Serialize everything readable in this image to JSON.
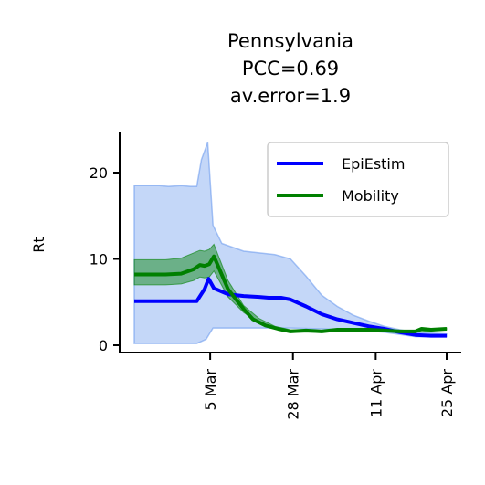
{
  "chart_data": {
    "type": "line",
    "title": [
      "Pennsylvania",
      "PCC=0.69",
      "av.error=1.9"
    ],
    "ylabel": "Rt",
    "xlabel": "",
    "x_ticks": [
      {
        "label": "5 Mar",
        "t": 0.243
      },
      {
        "label": "28 Mar",
        "t": 0.508
      },
      {
        "label": "11 Apr",
        "t": 0.773
      },
      {
        "label": "25 Apr",
        "t": 1.0
      }
    ],
    "y_ticks": [
      0,
      10,
      20
    ],
    "ylim": [
      -0.8,
      24.5
    ],
    "grid": false,
    "legend": {
      "placement": "top-right",
      "entries": [
        {
          "name": "EpiEstim",
          "color": "#0000ff"
        },
        {
          "name": "Mobility",
          "color": "#008000"
        }
      ]
    },
    "colors": {
      "epiestim": "#0000ff",
      "epiestim_band": "#6495ed",
      "mobility": "#008000"
    },
    "series": [
      {
        "name": "EpiEstim",
        "color": "#0000ff",
        "points": [
          [
            0.0,
            5.1
          ],
          [
            0.2,
            5.1
          ],
          [
            0.225,
            6.5
          ],
          [
            0.238,
            7.7
          ],
          [
            0.255,
            6.6
          ],
          [
            0.3,
            5.9
          ],
          [
            0.35,
            5.7
          ],
          [
            0.4,
            5.6
          ],
          [
            0.43,
            5.5
          ],
          [
            0.47,
            5.5
          ],
          [
            0.5,
            5.3
          ],
          [
            0.55,
            4.5
          ],
          [
            0.6,
            3.6
          ],
          [
            0.65,
            3.0
          ],
          [
            0.7,
            2.6
          ],
          [
            0.75,
            2.2
          ],
          [
            0.8,
            1.9
          ],
          [
            0.85,
            1.5
          ],
          [
            0.9,
            1.2
          ],
          [
            0.95,
            1.1
          ],
          [
            1.0,
            1.1
          ]
        ],
        "band_upper": [
          [
            0.0,
            18.5
          ],
          [
            0.08,
            18.5
          ],
          [
            0.11,
            18.4
          ],
          [
            0.15,
            18.5
          ],
          [
            0.18,
            18.4
          ],
          [
            0.2,
            18.4
          ],
          [
            0.215,
            21.5
          ],
          [
            0.235,
            23.5
          ],
          [
            0.252,
            13.9
          ],
          [
            0.28,
            11.8
          ],
          [
            0.35,
            10.9
          ],
          [
            0.45,
            10.5
          ],
          [
            0.5,
            10.0
          ],
          [
            0.55,
            8.0
          ],
          [
            0.6,
            5.8
          ],
          [
            0.65,
            4.5
          ],
          [
            0.7,
            3.5
          ],
          [
            0.75,
            2.8
          ],
          [
            0.8,
            2.2
          ],
          [
            0.85,
            1.8
          ],
          [
            0.9,
            1.5
          ],
          [
            0.95,
            1.4
          ],
          [
            1.0,
            1.3
          ]
        ],
        "band_lower": [
          [
            0.0,
            0.2
          ],
          [
            0.2,
            0.2
          ],
          [
            0.23,
            0.7
          ],
          [
            0.252,
            2.0
          ],
          [
            0.3,
            2.0
          ],
          [
            0.5,
            2.0
          ],
          [
            0.6,
            1.9
          ],
          [
            0.7,
            1.8
          ],
          [
            0.8,
            1.5
          ],
          [
            0.9,
            1.0
          ],
          [
            1.0,
            1.0
          ]
        ]
      },
      {
        "name": "Mobility",
        "color": "#008000",
        "points": [
          [
            0.0,
            8.2
          ],
          [
            0.1,
            8.2
          ],
          [
            0.15,
            8.3
          ],
          [
            0.19,
            8.8
          ],
          [
            0.21,
            9.3
          ],
          [
            0.225,
            9.2
          ],
          [
            0.24,
            9.4
          ],
          [
            0.255,
            10.3
          ],
          [
            0.3,
            6.5
          ],
          [
            0.35,
            4.2
          ],
          [
            0.38,
            3.0
          ],
          [
            0.42,
            2.3
          ],
          [
            0.46,
            1.9
          ],
          [
            0.5,
            1.6
          ],
          [
            0.55,
            1.7
          ],
          [
            0.6,
            1.6
          ],
          [
            0.65,
            1.8
          ],
          [
            0.7,
            1.8
          ],
          [
            0.75,
            1.8
          ],
          [
            0.8,
            1.7
          ],
          [
            0.85,
            1.6
          ],
          [
            0.9,
            1.6
          ],
          [
            0.92,
            1.9
          ],
          [
            0.95,
            1.8
          ],
          [
            1.0,
            1.9
          ]
        ],
        "band_upper": [
          [
            0.0,
            9.9
          ],
          [
            0.1,
            9.9
          ],
          [
            0.15,
            10.1
          ],
          [
            0.19,
            10.7
          ],
          [
            0.21,
            11.0
          ],
          [
            0.225,
            10.9
          ],
          [
            0.24,
            11.1
          ],
          [
            0.255,
            11.7
          ],
          [
            0.3,
            7.5
          ],
          [
            0.35,
            4.6
          ],
          [
            0.4,
            3.1
          ],
          [
            0.45,
            2.2
          ],
          [
            0.5,
            1.8
          ],
          [
            0.6,
            1.7
          ],
          [
            0.7,
            1.9
          ],
          [
            0.8,
            1.8
          ],
          [
            0.9,
            1.7
          ],
          [
            1.0,
            2.0
          ]
        ],
        "band_lower": [
          [
            0.0,
            7.0
          ],
          [
            0.1,
            7.0
          ],
          [
            0.15,
            7.1
          ],
          [
            0.19,
            7.5
          ],
          [
            0.21,
            7.9
          ],
          [
            0.225,
            7.8
          ],
          [
            0.24,
            7.9
          ],
          [
            0.255,
            8.6
          ],
          [
            0.3,
            5.6
          ],
          [
            0.35,
            3.8
          ],
          [
            0.4,
            2.6
          ],
          [
            0.45,
            1.9
          ],
          [
            0.5,
            1.5
          ],
          [
            0.6,
            1.5
          ],
          [
            0.7,
            1.7
          ],
          [
            0.8,
            1.6
          ],
          [
            0.9,
            1.5
          ],
          [
            1.0,
            1.8
          ]
        ]
      }
    ]
  }
}
